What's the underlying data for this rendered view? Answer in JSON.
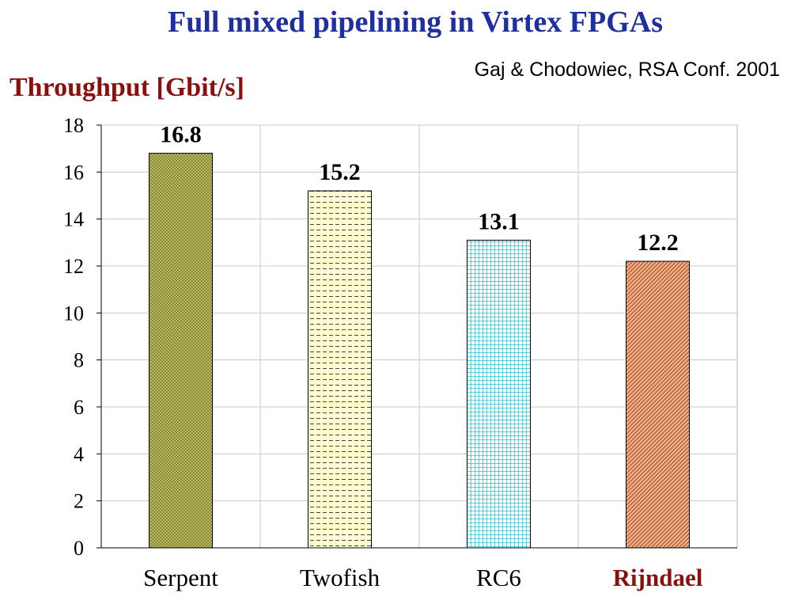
{
  "title": "Full mixed pipelining in Virtex FPGAs",
  "citation": "Gaj & Chodowiec, RSA Conf. 2001",
  "chart_data": {
    "type": "bar",
    "title": "Full mixed pipelining in Virtex FPGAs",
    "ylabel": "Throughput [Gbit/s]",
    "xlabel": "",
    "categories": [
      "Serpent",
      "Twofish",
      "RC6",
      "Rijndael"
    ],
    "values": [
      16.8,
      15.2,
      13.1,
      12.2
    ],
    "data_labels": [
      "16.8",
      "15.2",
      "13.1",
      "12.2"
    ],
    "ylim": [
      0,
      18
    ],
    "yticks": [
      "0",
      "2",
      "4",
      "6",
      "8",
      "10",
      "12",
      "14",
      "16",
      "18"
    ],
    "grid": true,
    "legend": "none",
    "bar_colors": [
      "#b8b860",
      "#ffffd0",
      "#40d8e0",
      "#f0a070"
    ],
    "highlight_category": "Rijndael",
    "highlight_color": "#8a1010",
    "title_color": "#1f2fa0",
    "ylabel_color": "#8a1010"
  }
}
